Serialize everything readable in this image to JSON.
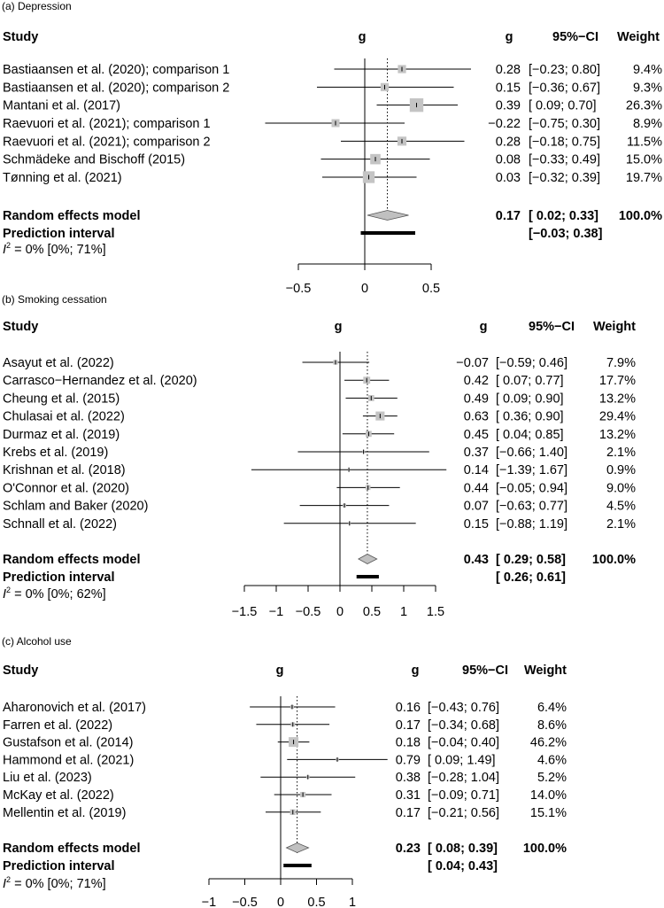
{
  "chart_data": [
    {
      "type": "forest",
      "title": "(a) Depression",
      "headers": {
        "study": "Study",
        "g_col": "g",
        "g": "g",
        "ci": "95%−CI",
        "weight": "Weight"
      },
      "xlim": [
        -0.5,
        0.5
      ],
      "ticks": [
        "−0.5",
        "0",
        "0.5"
      ],
      "tick_values": [
        -0.5,
        0,
        0.5
      ],
      "studies": [
        {
          "label": "Bastiaansen et al. (2020); comparison 1",
          "g": 0.28,
          "lo": -0.23,
          "hi": 0.8,
          "g_text": "0.28",
          "ci_text": "[−0.23; 0.80]",
          "weight_text": "9.4%",
          "weight": 9.4
        },
        {
          "label": "Bastiaansen et al. (2020); comparison 2",
          "g": 0.15,
          "lo": -0.36,
          "hi": 0.67,
          "g_text": "0.15",
          "ci_text": "[−0.36; 0.67]",
          "weight_text": "9.3%",
          "weight": 9.3
        },
        {
          "label": "Mantani et al. (2017)",
          "g": 0.39,
          "lo": 0.09,
          "hi": 0.7,
          "g_text": "0.39",
          "ci_text": "[ 0.09; 0.70]",
          "weight_text": "26.3%",
          "weight": 26.3
        },
        {
          "label": "Raevuori et al. (2021); comparison 1",
          "g": -0.22,
          "lo": -0.75,
          "hi": 0.3,
          "g_text": "−0.22",
          "ci_text": "[−0.75; 0.30]",
          "weight_text": "8.9%",
          "weight": 8.9
        },
        {
          "label": "Raevuori et al. (2021); comparison 2",
          "g": 0.28,
          "lo": -0.18,
          "hi": 0.75,
          "g_text": "0.28",
          "ci_text": "[−0.18; 0.75]",
          "weight_text": "11.5%",
          "weight": 11.5
        },
        {
          "label": "Schmädeke and Bischoff (2015)",
          "g": 0.08,
          "lo": -0.33,
          "hi": 0.49,
          "g_text": "0.08",
          "ci_text": "[−0.33; 0.49]",
          "weight_text": "15.0%",
          "weight": 15.0
        },
        {
          "label": "Tønning et al. (2021)",
          "g": 0.03,
          "lo": -0.32,
          "hi": 0.39,
          "g_text": "0.03",
          "ci_text": "[−0.32; 0.39]",
          "weight_text": "19.7%",
          "weight": 19.7
        }
      ],
      "pooled": {
        "label": "Random effects model",
        "g": 0.17,
        "lo": 0.02,
        "hi": 0.33,
        "g_text": "0.17",
        "ci_text": "[ 0.02; 0.33]",
        "weight_text": "100.0%"
      },
      "prediction": {
        "label": "Prediction interval",
        "lo": -0.03,
        "hi": 0.38,
        "ci_text": "[−0.03; 0.38]"
      },
      "heterogeneity": {
        "prefix": "I",
        "sup": "2",
        "text": " = 0% [0%; 71%]"
      }
    },
    {
      "type": "forest",
      "title": "(b) Smoking cessation",
      "headers": {
        "study": "Study",
        "g_col": "g",
        "g": "g",
        "ci": "95%−CI",
        "weight": "Weight"
      },
      "xlim": [
        -1.5,
        1.5
      ],
      "ticks": [
        "−1.5",
        "−1",
        "−0.5",
        "0",
        "0.5",
        "1",
        "1.5"
      ],
      "tick_values": [
        -1.5,
        -1,
        -0.5,
        0,
        0.5,
        1,
        1.5
      ],
      "studies": [
        {
          "label": "Asayut et al. (2022)",
          "g": -0.07,
          "lo": -0.59,
          "hi": 0.46,
          "g_text": "−0.07",
          "ci_text": "[−0.59; 0.46]",
          "weight_text": "7.9%",
          "weight": 7.9
        },
        {
          "label": "Carrasco−Hernandez et al. (2020)",
          "g": 0.42,
          "lo": 0.07,
          "hi": 0.77,
          "g_text": "0.42",
          "ci_text": "[ 0.07; 0.77]",
          "weight_text": "17.7%",
          "weight": 17.7
        },
        {
          "label": "Cheung et al. (2015)",
          "g": 0.49,
          "lo": 0.09,
          "hi": 0.9,
          "g_text": "0.49",
          "ci_text": "[ 0.09; 0.90]",
          "weight_text": "13.2%",
          "weight": 13.2
        },
        {
          "label": "Chulasai et al. (2022)",
          "g": 0.63,
          "lo": 0.36,
          "hi": 0.9,
          "g_text": "0.63",
          "ci_text": "[ 0.36; 0.90]",
          "weight_text": "29.4%",
          "weight": 29.4
        },
        {
          "label": "Durmaz et al. (2019)",
          "g": 0.45,
          "lo": 0.04,
          "hi": 0.85,
          "g_text": "0.45",
          "ci_text": "[ 0.04; 0.85]",
          "weight_text": "13.2%",
          "weight": 13.2
        },
        {
          "label": "Krebs et al. (2019)",
          "g": 0.37,
          "lo": -0.66,
          "hi": 1.4,
          "g_text": "0.37",
          "ci_text": "[−0.66; 1.40]",
          "weight_text": "2.1%",
          "weight": 2.1
        },
        {
          "label": "Krishnan et al. (2018)",
          "g": 0.14,
          "lo": -1.39,
          "hi": 1.67,
          "g_text": "0.14",
          "ci_text": "[−1.39; 1.67]",
          "weight_text": "0.9%",
          "weight": 0.9
        },
        {
          "label": "O'Connor et al. (2020)",
          "g": 0.44,
          "lo": -0.05,
          "hi": 0.94,
          "g_text": "0.44",
          "ci_text": "[−0.05; 0.94]",
          "weight_text": "9.0%",
          "weight": 9.0
        },
        {
          "label": "Schlam and Baker (2020)",
          "g": 0.07,
          "lo": -0.63,
          "hi": 0.77,
          "g_text": "0.07",
          "ci_text": "[−0.63; 0.77]",
          "weight_text": "4.5%",
          "weight": 4.5
        },
        {
          "label": "Schnall et al. (2022)",
          "g": 0.15,
          "lo": -0.88,
          "hi": 1.19,
          "g_text": "0.15",
          "ci_text": "[−0.88; 1.19]",
          "weight_text": "2.1%",
          "weight": 2.1
        }
      ],
      "pooled": {
        "label": "Random effects model",
        "g": 0.43,
        "lo": 0.29,
        "hi": 0.58,
        "g_text": "0.43",
        "ci_text": "[ 0.29; 0.58]",
        "weight_text": "100.0%"
      },
      "prediction": {
        "label": "Prediction interval",
        "lo": 0.26,
        "hi": 0.61,
        "ci_text": "[ 0.26; 0.61]"
      },
      "heterogeneity": {
        "prefix": "I",
        "sup": "2",
        "text": " = 0% [0%; 62%]"
      }
    },
    {
      "type": "forest",
      "title": "(c) Alcohol use",
      "headers": {
        "study": "Study",
        "g_col": "g",
        "g": "g",
        "ci": "95%−CI",
        "weight": "Weight"
      },
      "xlim": [
        -1,
        1
      ],
      "ticks": [
        "−1",
        "−0.5",
        "0",
        "0.5",
        "1"
      ],
      "tick_values": [
        -1,
        -0.5,
        0,
        0.5,
        1
      ],
      "studies": [
        {
          "label": "Aharonovich et al. (2017)",
          "g": 0.16,
          "lo": -0.43,
          "hi": 0.76,
          "g_text": "0.16",
          "ci_text": "[−0.43; 0.76]",
          "weight_text": "6.4%",
          "weight": 6.4
        },
        {
          "label": "Farren et al. (2022)",
          "g": 0.17,
          "lo": -0.34,
          "hi": 0.68,
          "g_text": "0.17",
          "ci_text": "[−0.34; 0.68]",
          "weight_text": "8.6%",
          "weight": 8.6
        },
        {
          "label": "Gustafson et al. (2014)",
          "g": 0.18,
          "lo": -0.04,
          "hi": 0.4,
          "g_text": "0.18",
          "ci_text": "[−0.04; 0.40]",
          "weight_text": "46.2%",
          "weight": 46.2
        },
        {
          "label": "Hammond et al. (2021)",
          "g": 0.79,
          "lo": 0.09,
          "hi": 1.49,
          "g_text": "0.79",
          "ci_text": "[ 0.09; 1.49]",
          "weight_text": "4.6%",
          "weight": 4.6
        },
        {
          "label": "Liu et al. (2023)",
          "g": 0.38,
          "lo": -0.28,
          "hi": 1.04,
          "g_text": "0.38",
          "ci_text": "[−0.28; 1.04]",
          "weight_text": "5.2%",
          "weight": 5.2
        },
        {
          "label": "McKay et al. (2022)",
          "g": 0.31,
          "lo": -0.09,
          "hi": 0.71,
          "g_text": "0.31",
          "ci_text": "[−0.09; 0.71]",
          "weight_text": "14.0%",
          "weight": 14.0
        },
        {
          "label": "Mellentin et al. (2019)",
          "g": 0.17,
          "lo": -0.21,
          "hi": 0.56,
          "g_text": "0.17",
          "ci_text": "[−0.21; 0.56]",
          "weight_text": "15.1%",
          "weight": 15.1
        }
      ],
      "pooled": {
        "label": "Random effects model",
        "g": 0.23,
        "lo": 0.08,
        "hi": 0.39,
        "g_text": "0.23",
        "ci_text": "[ 0.08; 0.39]",
        "weight_text": "100.0%"
      },
      "prediction": {
        "label": "Prediction interval",
        "lo": 0.04,
        "hi": 0.43,
        "ci_text": "[ 0.04; 0.43]"
      },
      "heterogeneity": {
        "prefix": "I",
        "sup": "2",
        "text": " = 0% [0%; 71%]"
      }
    }
  ],
  "colors": {
    "square": "#c4c4c4",
    "diamond": "#c0c0c0",
    "line": "#000000"
  }
}
